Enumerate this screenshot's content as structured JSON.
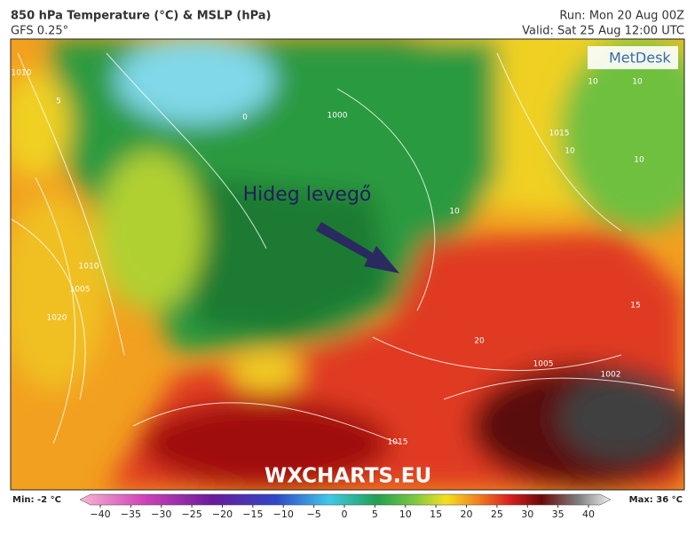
{
  "header": {
    "title": "850 hPa Temperature (°C) & MSLP (hPa)",
    "model": "GFS 0.25°",
    "run": "Run: Mon 20 Aug 00Z",
    "valid": "Valid: Sat 25 Aug 12:00 UTC"
  },
  "map": {
    "annotation": "Hideg levegő",
    "brand": "MetDesk",
    "watermark": "WXCHARTS.EU",
    "contour_labels": [
      "1010",
      "5",
      "0",
      "1000",
      "10",
      "10",
      "10",
      "1015",
      "1010",
      "1005",
      "1020",
      "15",
      "20",
      "1005",
      "1002",
      "1015",
      "10",
      "10"
    ]
  },
  "colorbar": {
    "min_label": "Min: -2 °C",
    "max_label": "Max: 36 °C",
    "lim": [
      -40,
      40
    ],
    "ticks": [
      {
        "value": -40,
        "label": "−40"
      },
      {
        "value": -35,
        "label": "−35"
      },
      {
        "value": -30,
        "label": "−30"
      },
      {
        "value": -25,
        "label": "−25"
      },
      {
        "value": -20,
        "label": "−20"
      },
      {
        "value": -15,
        "label": "−15"
      },
      {
        "value": -10,
        "label": "−10"
      },
      {
        "value": -5,
        "label": "−5"
      },
      0,
      5,
      10,
      15,
      20,
      25,
      30,
      35,
      40
    ]
  }
}
